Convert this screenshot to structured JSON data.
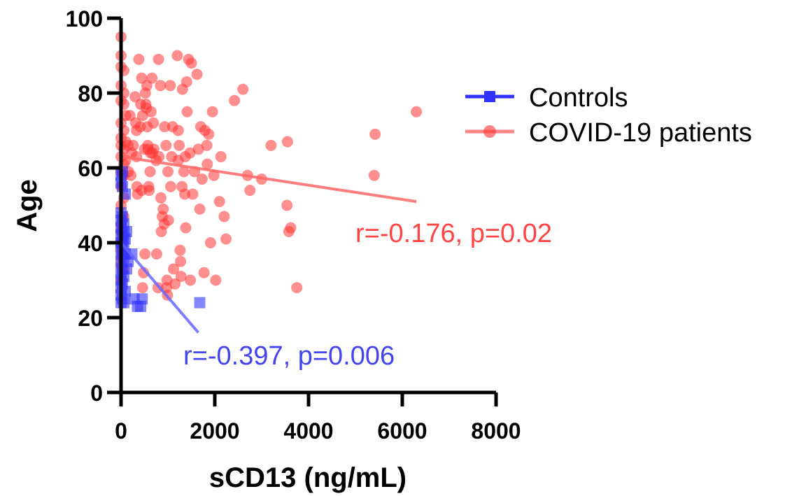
{
  "chart_data": {
    "type": "scatter",
    "title": "",
    "xlabel": "sCD13 (ng/mL)",
    "ylabel": "Age",
    "xlim": [
      0,
      8000
    ],
    "ylim": [
      0,
      100
    ],
    "x_ticks": [
      0,
      2000,
      4000,
      6000,
      8000
    ],
    "y_ticks": [
      0,
      20,
      40,
      60,
      80,
      100
    ],
    "x_tick_labels": [
      "0",
      "2000",
      "4000",
      "6000",
      "8000"
    ],
    "y_tick_labels": [
      "0",
      "20",
      "40",
      "60",
      "80",
      "100"
    ],
    "legend_position": "right",
    "grid": false,
    "series": [
      {
        "name": "Controls",
        "marker": "square",
        "color": "#3333ff",
        "points": [
          [
            0,
            24
          ],
          [
            0,
            26
          ],
          [
            0,
            28
          ],
          [
            0,
            30
          ],
          [
            0,
            32
          ],
          [
            0,
            35
          ],
          [
            0,
            38
          ],
          [
            0,
            40
          ],
          [
            0,
            42
          ],
          [
            0,
            44
          ],
          [
            0,
            46
          ],
          [
            0,
            48
          ],
          [
            0,
            56
          ],
          [
            0,
            58
          ],
          [
            30,
            25
          ],
          [
            30,
            29
          ],
          [
            30,
            33
          ],
          [
            30,
            37
          ],
          [
            30,
            40
          ],
          [
            30,
            43
          ],
          [
            30,
            47
          ],
          [
            30,
            55
          ],
          [
            30,
            59
          ],
          [
            60,
            24
          ],
          [
            60,
            31
          ],
          [
            60,
            36
          ],
          [
            60,
            39
          ],
          [
            60,
            42
          ],
          [
            60,
            45
          ],
          [
            90,
            27
          ],
          [
            90,
            37
          ],
          [
            90,
            41
          ],
          [
            90,
            53
          ],
          [
            120,
            33
          ],
          [
            120,
            43
          ],
          [
            150,
            35
          ],
          [
            230,
            37
          ],
          [
            280,
            25
          ],
          [
            350,
            23
          ],
          [
            420,
            23
          ],
          [
            450,
            25
          ],
          [
            1680,
            24
          ]
        ],
        "trendline": {
          "x": [
            0,
            1650
          ],
          "y": [
            40,
            16
          ]
        }
      },
      {
        "name": "COVID-19 patients",
        "marker": "circle",
        "color": "#ff3333",
        "points": [
          [
            0,
            95
          ],
          [
            0,
            90
          ],
          [
            0,
            87
          ],
          [
            0,
            82
          ],
          [
            0,
            78
          ],
          [
            0,
            72
          ],
          [
            0,
            68
          ],
          [
            0,
            66
          ],
          [
            0,
            63
          ],
          [
            0,
            59
          ],
          [
            0,
            55
          ],
          [
            0,
            50
          ],
          [
            0,
            45
          ],
          [
            0,
            43
          ],
          [
            0,
            40
          ],
          [
            0,
            38
          ],
          [
            0,
            36
          ],
          [
            0,
            34
          ],
          [
            0,
            30
          ],
          [
            60,
            86
          ],
          [
            60,
            80
          ],
          [
            60,
            77
          ],
          [
            60,
            70
          ],
          [
            60,
            65
          ],
          [
            60,
            61
          ],
          [
            60,
            58
          ],
          [
            60,
            52
          ],
          [
            60,
            47
          ],
          [
            60,
            37
          ],
          [
            60,
            33
          ],
          [
            100,
            74
          ],
          [
            100,
            67
          ],
          [
            100,
            62
          ],
          [
            150,
            66
          ],
          [
            160,
            59
          ],
          [
            190,
            74
          ],
          [
            210,
            58
          ],
          [
            230,
            64
          ],
          [
            260,
            66
          ],
          [
            300,
            79
          ],
          [
            310,
            72
          ],
          [
            330,
            70
          ],
          [
            330,
            63
          ],
          [
            340,
            55
          ],
          [
            350,
            53
          ],
          [
            380,
            89
          ],
          [
            410,
            71
          ],
          [
            420,
            77
          ],
          [
            440,
            84
          ],
          [
            440,
            54
          ],
          [
            460,
            74
          ],
          [
            460,
            28
          ],
          [
            480,
            32
          ],
          [
            500,
            65
          ],
          [
            510,
            37
          ],
          [
            520,
            80
          ],
          [
            530,
            77
          ],
          [
            540,
            76
          ],
          [
            550,
            82
          ],
          [
            560,
            71
          ],
          [
            570,
            66
          ],
          [
            580,
            65
          ],
          [
            590,
            55
          ],
          [
            600,
            54
          ],
          [
            620,
            59
          ],
          [
            630,
            64
          ],
          [
            640,
            75
          ],
          [
            660,
            84
          ],
          [
            670,
            64
          ],
          [
            690,
            72
          ],
          [
            700,
            65
          ],
          [
            750,
            62
          ],
          [
            760,
            37
          ],
          [
            790,
            28
          ],
          [
            800,
            89
          ],
          [
            810,
            63
          ],
          [
            840,
            82
          ],
          [
            850,
            52
          ],
          [
            860,
            43
          ],
          [
            880,
            47
          ],
          [
            900,
            49
          ],
          [
            920,
            45
          ],
          [
            930,
            71
          ],
          [
            960,
            66
          ],
          [
            970,
            28
          ],
          [
            980,
            30
          ],
          [
            990,
            26
          ],
          [
            1000,
            59
          ],
          [
            1010,
            46
          ],
          [
            1050,
            82
          ],
          [
            1060,
            55
          ],
          [
            1080,
            63
          ],
          [
            1100,
            71
          ],
          [
            1120,
            33
          ],
          [
            1150,
            29
          ],
          [
            1200,
            90
          ],
          [
            1220,
            70
          ],
          [
            1220,
            62
          ],
          [
            1240,
            66
          ],
          [
            1260,
            38
          ],
          [
            1270,
            35
          ],
          [
            1280,
            31
          ],
          [
            1300,
            55
          ],
          [
            1310,
            81
          ],
          [
            1340,
            59
          ],
          [
            1360,
            53
          ],
          [
            1370,
            63
          ],
          [
            1380,
            44
          ],
          [
            1400,
            83
          ],
          [
            1410,
            75
          ],
          [
            1440,
            89
          ],
          [
            1470,
            64
          ],
          [
            1480,
            30
          ],
          [
            1500,
            88
          ],
          [
            1530,
            53
          ],
          [
            1570,
            59
          ],
          [
            1620,
            85
          ],
          [
            1650,
            65
          ],
          [
            1680,
            49
          ],
          [
            1700,
            71
          ],
          [
            1730,
            57
          ],
          [
            1770,
            32
          ],
          [
            1790,
            70
          ],
          [
            1830,
            66
          ],
          [
            1840,
            61
          ],
          [
            1870,
            69
          ],
          [
            1910,
            40
          ],
          [
            1950,
            75
          ],
          [
            1980,
            58
          ],
          [
            2020,
            30
          ],
          [
            2100,
            51
          ],
          [
            2130,
            63
          ],
          [
            2200,
            47
          ],
          [
            2240,
            41
          ],
          [
            2420,
            78
          ],
          [
            2600,
            81
          ],
          [
            2700,
            58
          ],
          [
            2750,
            54
          ],
          [
            3000,
            57
          ],
          [
            3200,
            66
          ],
          [
            3550,
            67
          ],
          [
            3540,
            50
          ],
          [
            3580,
            43
          ],
          [
            3620,
            44
          ],
          [
            3750,
            28
          ],
          [
            5400,
            58
          ],
          [
            5420,
            69
          ],
          [
            6300,
            75
          ]
        ],
        "trendline": {
          "x": [
            0,
            6300
          ],
          "y": [
            63,
            51
          ]
        }
      }
    ],
    "annotations": [
      {
        "text": "r=-0.176, p=0.02",
        "color": "#ff4444"
      },
      {
        "text": "r=-0.397, p=0.006",
        "color": "#4444ee"
      }
    ]
  }
}
